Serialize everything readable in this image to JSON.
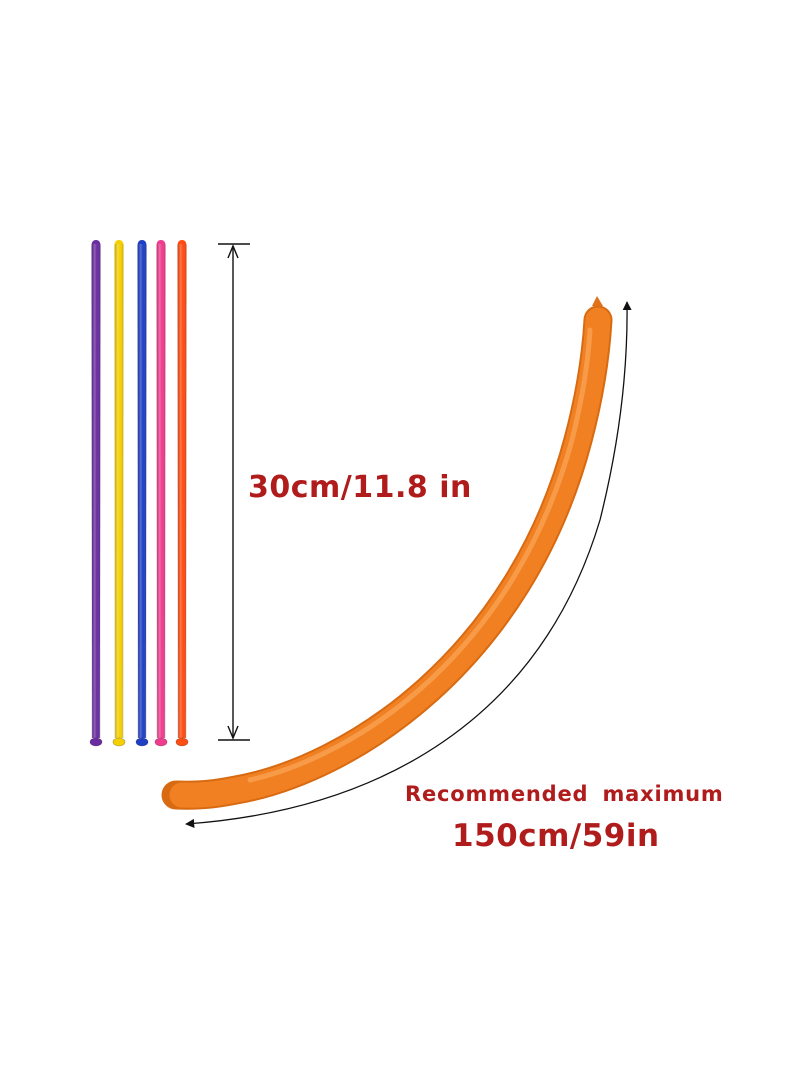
{
  "product": {
    "uninflated_length": "30cm/11.8 in",
    "recommended_label": "Recommended maximum",
    "max_length": "150cm/59in"
  },
  "balloons": {
    "uninflated_colors": [
      "#6a2ca0",
      "#f5d000",
      "#1f3fc4",
      "#f03c8e",
      "#ff4c12"
    ],
    "inflated_color": "#f08022"
  },
  "colors": {
    "label_text": "#b01c1c",
    "arrow_line": "#111111"
  }
}
